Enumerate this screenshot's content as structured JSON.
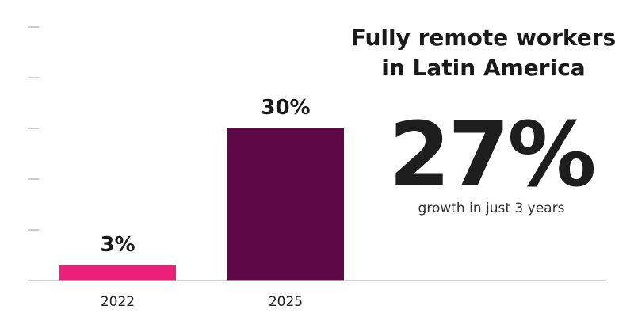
{
  "title": {
    "line1": "Fully remote workers",
    "line2": "in Latin America"
  },
  "highlight": {
    "value": "27%",
    "caption": "growth in just 3 years"
  },
  "chart_data": {
    "type": "bar",
    "categories": [
      "2022",
      "2025"
    ],
    "values": [
      3,
      30
    ],
    "data_labels": [
      "3%",
      "30%"
    ],
    "bar_colors": [
      "#ee1f7a",
      "#5e0848"
    ],
    "ylim": [
      0,
      50
    ],
    "y_ticks": [
      10,
      20,
      30,
      40,
      50
    ],
    "axis_color": "#bbbbbb",
    "grid": false,
    "legend": "none"
  }
}
